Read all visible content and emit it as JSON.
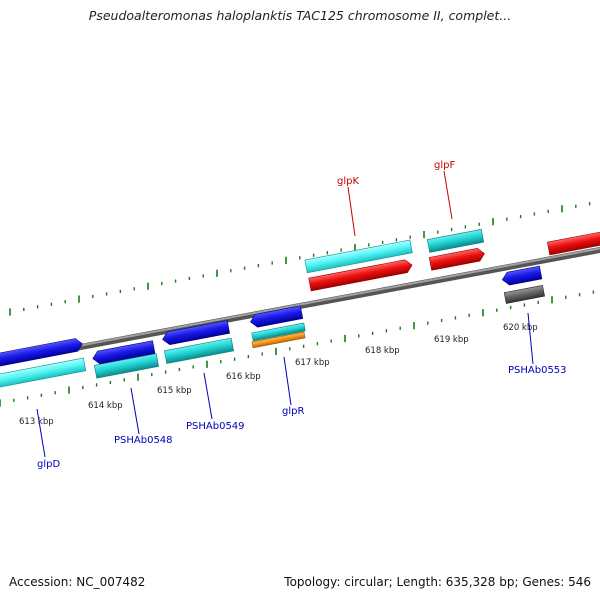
{
  "title": "Pseudoalteromonas haloplanktis TAC125 chromosome II, complet...",
  "footer": {
    "accession": "Accession: NC_007482",
    "topology": "Topology: circular; Length: 635,328 bp; Genes: 546"
  },
  "colors": {
    "backbone": "#888888",
    "tick": "#1a7a1a",
    "highlight_label": "#cc0000",
    "gene_label": "#0000bb",
    "gene_blue": "#1a1ae6",
    "gene_cyan": "#22d4d4",
    "gene_cyan_light": "#55f5f5",
    "gene_red": "#ee1111",
    "gene_orange": "#f59a16",
    "gene_gray": "#666666"
  },
  "scale": {
    "unit": "kbp",
    "labels": [
      "613 kbp",
      "614 kbp",
      "615 kbp",
      "616 kbp",
      "617 kbp",
      "618 kbp",
      "619 kbp",
      "620 kbp"
    ]
  },
  "genes": {
    "glpK": "glpK",
    "glpF": "glpF",
    "glpD": "glpD",
    "PSHAb0548": "PSHAb0548",
    "PSHAb0549": "PSHAb0549",
    "glpR": "glpR",
    "PSHAb0553": "PSHAb0553"
  }
}
